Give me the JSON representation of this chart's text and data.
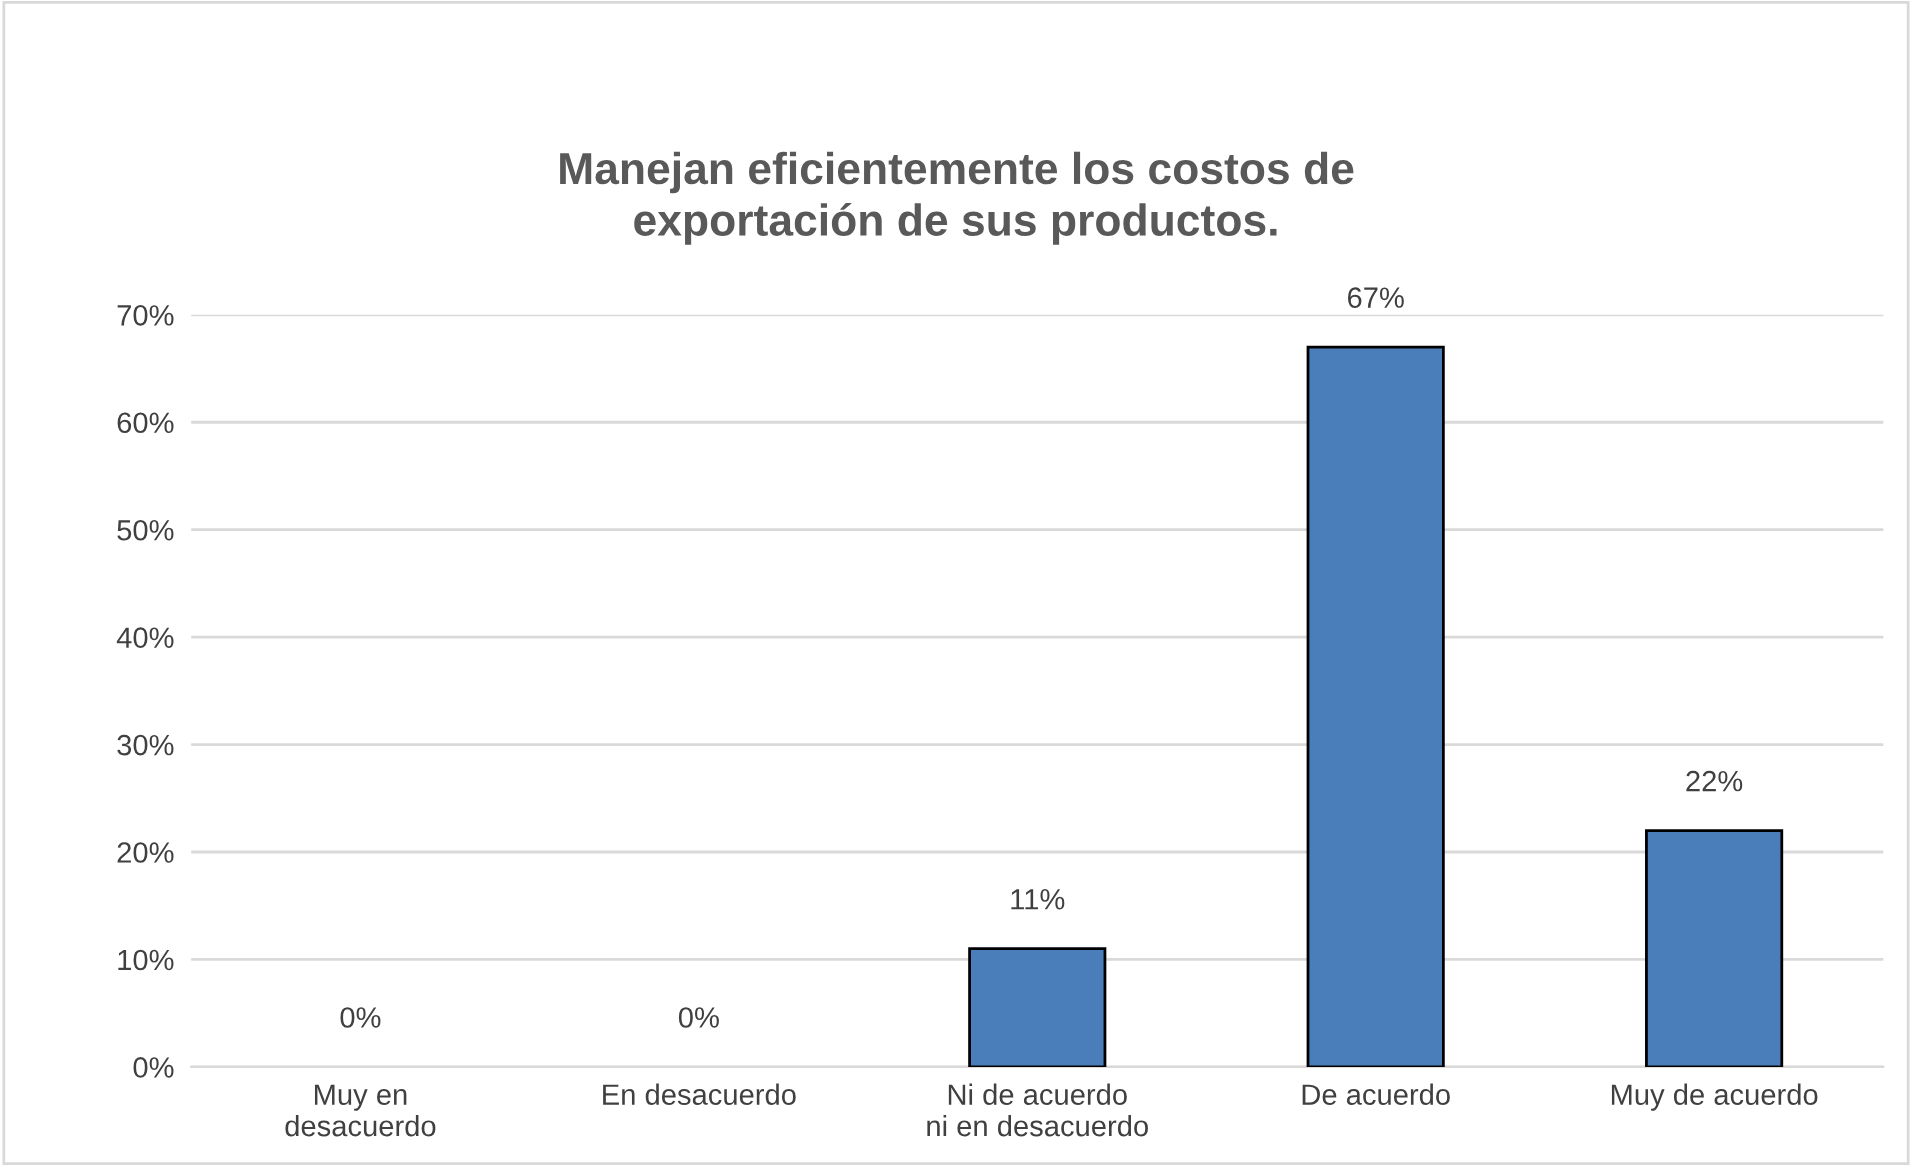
{
  "chart_data": {
    "type": "bar",
    "title": "Manejan eficientemente los costos de\nexportación de sus productos.",
    "categories": [
      "Muy en\ndesacuerdo",
      "En desacuerdo",
      "Ni de acuerdo\nni en desacuerdo",
      "De acuerdo",
      "Muy de acuerdo"
    ],
    "values": [
      0,
      0,
      11,
      67,
      22
    ],
    "value_labels": [
      "0%",
      "0%",
      "11%",
      "67%",
      "22%"
    ],
    "color": "#4a7ebb",
    "ylim": [
      0,
      70
    ],
    "yticks": [
      {
        "value": 0,
        "label": "0%"
      },
      {
        "value": 10,
        "label": "10%"
      },
      {
        "value": 20,
        "label": "20%"
      },
      {
        "value": 30,
        "label": "30%"
      },
      {
        "value": 40,
        "label": "40%"
      },
      {
        "value": 50,
        "label": "50%"
      },
      {
        "value": 60,
        "label": "60%"
      },
      {
        "value": 70,
        "label": "70%"
      }
    ],
    "grid": "y",
    "legend": false
  }
}
